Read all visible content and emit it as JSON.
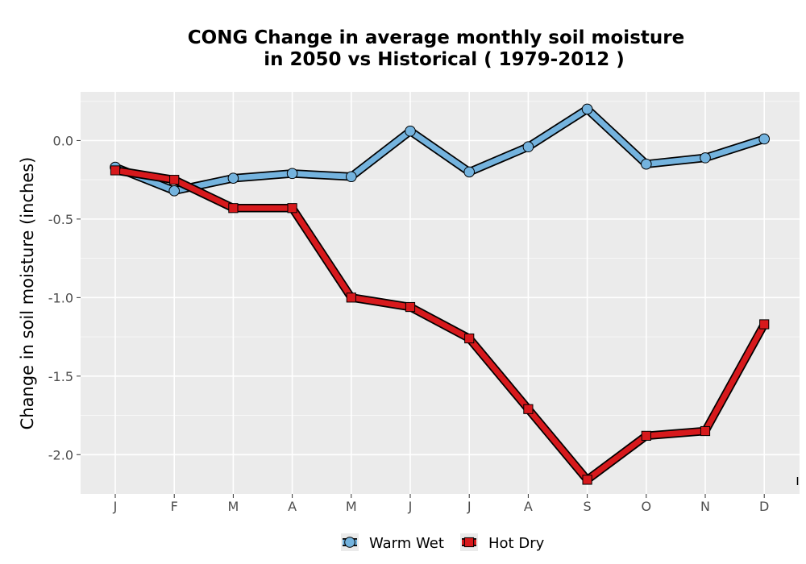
{
  "chart_data": {
    "type": "line",
    "title_line1": "CONG  Change in average monthly soil moisture",
    "title_line2": "in 2050 vs Historical ( 1979-2012 )",
    "xlabel": "",
    "ylabel": "Change in soil moisture (inches)",
    "categories": [
      "J",
      "F",
      "M",
      "A",
      "M",
      "J",
      "J",
      "A",
      "S",
      "O",
      "N",
      "D"
    ],
    "ylim": [
      -2.25,
      0.31
    ],
    "yticks": [
      0.0,
      -0.5,
      -1.0,
      -1.5,
      -2.0
    ],
    "ytick_labels": [
      "0.0",
      "-0.5",
      "-1.0",
      "-1.5",
      "-2.0"
    ],
    "grid": true,
    "legend_position": "bottom",
    "series": [
      {
        "name": "Warm Wet",
        "marker": "circle",
        "color": "#74b3de",
        "values": [
          -0.17,
          -0.32,
          -0.24,
          -0.21,
          -0.23,
          0.06,
          -0.2,
          -0.04,
          0.2,
          -0.15,
          -0.11,
          0.01
        ]
      },
      {
        "name": "Hot Dry",
        "marker": "square",
        "color": "#d7191c",
        "values": [
          -0.19,
          -0.25,
          -0.43,
          -0.43,
          -1.0,
          -1.06,
          -1.26,
          -1.71,
          -2.16,
          -1.88,
          -1.85,
          -1.17
        ]
      }
    ]
  }
}
